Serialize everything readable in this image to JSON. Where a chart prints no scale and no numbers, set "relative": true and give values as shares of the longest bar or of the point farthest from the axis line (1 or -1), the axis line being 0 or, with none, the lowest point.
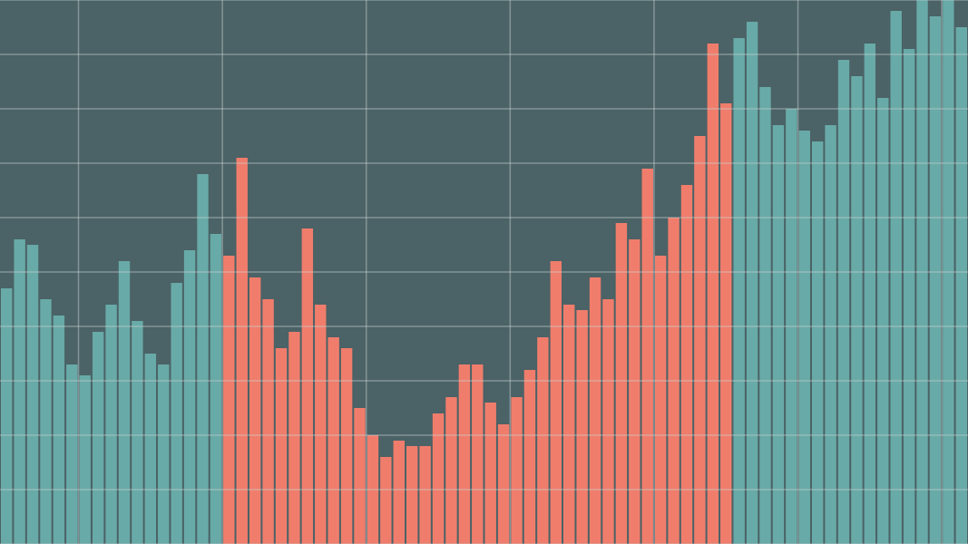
{
  "chart_data": {
    "type": "bar",
    "relative": true,
    "tick_labels": false,
    "grid": true,
    "categories": [
      null,
      null,
      null,
      null,
      null,
      null,
      null,
      null,
      null,
      null,
      null,
      null,
      null,
      null,
      null,
      null,
      null,
      null,
      null,
      null,
      null,
      null,
      null,
      null,
      null,
      null,
      null,
      null,
      null,
      null,
      null,
      null,
      null,
      null,
      null,
      null,
      null,
      null,
      null,
      null,
      null,
      null,
      null,
      null,
      null,
      null,
      null,
      null,
      null,
      null,
      null,
      null,
      null,
      null,
      null,
      null,
      null,
      null,
      null,
      null,
      null,
      null,
      null,
      null,
      null,
      null,
      null,
      null,
      null,
      null,
      null,
      null,
      null,
      null
    ],
    "values": [
      0.47,
      0.56,
      0.55,
      0.45,
      0.42,
      0.33,
      0.31,
      0.39,
      0.44,
      0.52,
      0.41,
      0.35,
      0.33,
      0.48,
      0.54,
      0.68,
      0.57,
      0.53,
      0.71,
      0.49,
      0.45,
      0.36,
      0.39,
      0.58,
      0.44,
      0.38,
      0.36,
      0.25,
      0.2,
      0.16,
      0.19,
      0.18,
      0.18,
      0.24,
      0.27,
      0.33,
      0.33,
      0.26,
      0.22,
      0.27,
      0.32,
      0.38,
      0.52,
      0.44,
      0.43,
      0.49,
      0.45,
      0.59,
      0.56,
      0.69,
      0.53,
      0.6,
      0.66,
      0.75,
      0.92,
      0.81,
      0.93,
      0.96,
      0.84,
      0.77,
      0.8,
      0.76,
      0.74,
      0.77,
      0.89,
      0.86,
      0.92,
      0.82,
      0.98,
      0.91,
      1,
      0.97,
      1,
      0.95
    ],
    "colors": [
      "#68aaa7",
      "#68aaa7",
      "#68aaa7",
      "#68aaa7",
      "#68aaa7",
      "#68aaa7",
      "#68aaa7",
      "#68aaa7",
      "#68aaa7",
      "#68aaa7",
      "#68aaa7",
      "#68aaa7",
      "#68aaa7",
      "#68aaa7",
      "#68aaa7",
      "#68aaa7",
      "#68aaa7",
      "#f07d6c",
      "#f07d6c",
      "#f07d6c",
      "#f07d6c",
      "#f07d6c",
      "#f07d6c",
      "#f07d6c",
      "#f07d6c",
      "#f07d6c",
      "#f07d6c",
      "#f07d6c",
      "#f07d6c",
      "#f07d6c",
      "#f07d6c",
      "#f07d6c",
      "#f07d6c",
      "#f07d6c",
      "#f07d6c",
      "#f07d6c",
      "#f07d6c",
      "#f07d6c",
      "#f07d6c",
      "#f07d6c",
      "#f07d6c",
      "#f07d6c",
      "#f07d6c",
      "#f07d6c",
      "#f07d6c",
      "#f07d6c",
      "#f07d6c",
      "#f07d6c",
      "#f07d6c",
      "#f07d6c",
      "#f07d6c",
      "#f07d6c",
      "#f07d6c",
      "#f07d6c",
      "#f07d6c",
      "#f07d6c",
      "#68aaa7",
      "#68aaa7",
      "#68aaa7",
      "#68aaa7",
      "#68aaa7",
      "#68aaa7",
      "#68aaa7",
      "#68aaa7",
      "#68aaa7",
      "#68aaa7",
      "#68aaa7",
      "#68aaa7",
      "#68aaa7",
      "#68aaa7",
      "#68aaa7",
      "#68aaa7",
      "#68aaa7",
      "#68aaa7"
    ]
  }
}
